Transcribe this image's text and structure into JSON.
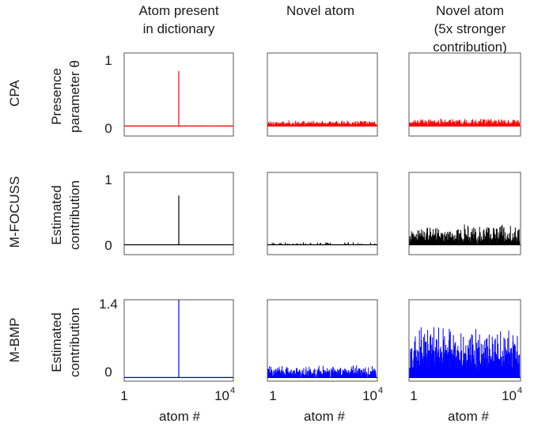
{
  "figure": {
    "column_titles": [
      [
        "Atom present",
        "in dictionary"
      ],
      [
        "Novel  atom"
      ],
      [
        "Novel  atom",
        "(5x stronger",
        "contribution)"
      ]
    ],
    "row_labels": [
      "CPA",
      "M-FOCUSS",
      "M-BMP"
    ],
    "y_axis_titles": [
      [
        "Presence",
        "parameter θ"
      ],
      [
        "Estimated",
        "contribution"
      ],
      [
        "Estimated",
        "contribution"
      ]
    ],
    "x_axis_title": "atom #",
    "x_tick_labels": {
      "min": "1",
      "max_base": "10",
      "max_exp": "4"
    },
    "y_tick_labels": [
      [
        "1",
        "0"
      ],
      [
        "1",
        "0"
      ],
      [
        "1.4",
        "0"
      ]
    ],
    "colors": {
      "CPA": "#ff0000",
      "M-FOCUSS": "#000000",
      "M-BMP": "#0000ff",
      "axis": "#555555"
    }
  },
  "chart_data": [
    {
      "type": "bar",
      "row": "CPA",
      "column": "Atom present in dictionary",
      "color": "#ff0000",
      "xlim": [
        1,
        10000
      ],
      "ylim": [
        -0.15,
        1.1
      ],
      "spike": {
        "x": 5000,
        "y": 0.83
      },
      "noise_max": 0.01,
      "noise_density": 1.0,
      "seed": 11
    },
    {
      "type": "bar",
      "row": "CPA",
      "column": "Novel  atom",
      "color": "#ff0000",
      "xlim": [
        1,
        10000
      ],
      "ylim": [
        -0.15,
        1.1
      ],
      "noise_max": 0.09,
      "noise_density": 1.0,
      "seed": 23
    },
    {
      "type": "bar",
      "row": "CPA",
      "column": "Novel  atom (5x stronger contribution)",
      "color": "#ff0000",
      "xlim": [
        1,
        10000
      ],
      "ylim": [
        -0.15,
        1.1
      ],
      "noise_max": 0.12,
      "noise_density": 1.0,
      "seed": 37
    },
    {
      "type": "bar",
      "row": "M-FOCUSS",
      "column": "Atom present in dictionary",
      "color": "#000000",
      "xlim": [
        1,
        10000
      ],
      "ylim": [
        -0.15,
        1.1
      ],
      "spike": {
        "x": 5000,
        "y": 0.75
      },
      "noise_max": 0.0,
      "noise_density": 0.0,
      "seed": 41
    },
    {
      "type": "bar",
      "row": "M-FOCUSS",
      "column": "Novel  atom",
      "color": "#000000",
      "xlim": [
        1,
        10000
      ],
      "ylim": [
        -0.15,
        1.1
      ],
      "noise_max": 0.04,
      "noise_density": 0.15,
      "seed": 53
    },
    {
      "type": "bar",
      "row": "M-FOCUSS",
      "column": "Novel  atom (5x stronger contribution)",
      "color": "#000000",
      "xlim": [
        1,
        10000
      ],
      "ylim": [
        -0.15,
        1.1
      ],
      "noise_max": 0.32,
      "noise_density": 0.9,
      "seed": 67
    },
    {
      "type": "bar",
      "row": "M-BMP",
      "column": "Atom present in dictionary",
      "color": "#0000ff",
      "xlim": [
        1,
        10000
      ],
      "ylim": [
        -0.07,
        1.5
      ],
      "spike": {
        "x": 5000,
        "y": 1.5
      },
      "noise_max": 0.0,
      "noise_density": 0.0,
      "seed": 71
    },
    {
      "type": "bar",
      "row": "M-BMP",
      "column": "Novel  atom",
      "color": "#0000ff",
      "xlim": [
        1,
        10000
      ],
      "ylim": [
        -0.07,
        1.5
      ],
      "noise_max": 0.25,
      "noise_density": 0.9,
      "seed": 83
    },
    {
      "type": "bar",
      "row": "M-BMP",
      "column": "Novel  atom (5x stronger contribution)",
      "color": "#0000ff",
      "xlim": [
        1,
        10000
      ],
      "ylim": [
        -0.07,
        1.5
      ],
      "noise_max": 1.0,
      "noise_density": 1.0,
      "seed": 97
    }
  ]
}
